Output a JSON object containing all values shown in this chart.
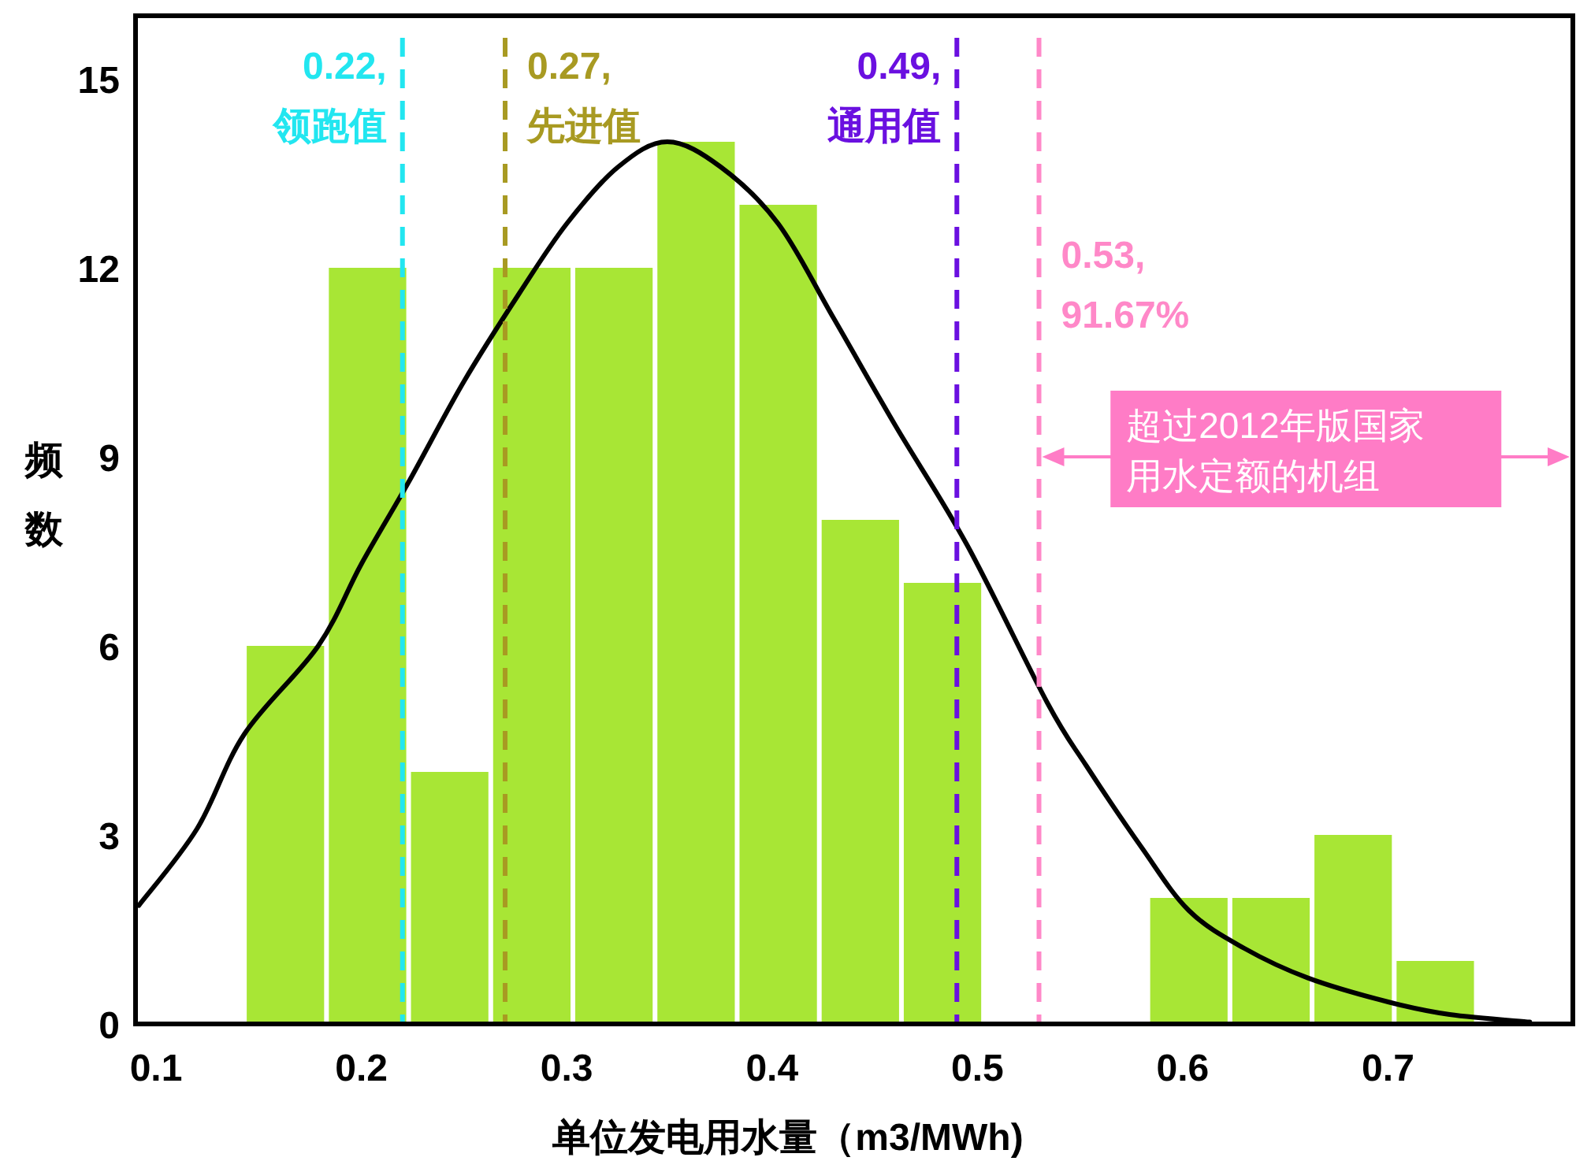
{
  "chart_data": {
    "type": "histogram",
    "xlabel": "单位发电用水量（m3/MWh)",
    "ylabel": "频数",
    "bins": [
      0.143,
      0.183,
      0.223,
      0.263,
      0.303,
      0.343,
      0.383,
      0.423,
      0.463,
      0.503,
      0.543,
      0.583,
      0.623,
      0.663,
      0.703,
      0.743
    ],
    "values": [
      6,
      12,
      4,
      12,
      12,
      14,
      13,
      8,
      7,
      0,
      0,
      2,
      2,
      3,
      1
    ],
    "color": "#a8e635",
    "series": [
      {
        "type": "line",
        "color": "#000000",
        "x": [
          0.0916,
          0.12,
          0.143,
          0.179,
          0.2,
          0.223,
          0.25,
          0.277,
          0.3,
          0.325,
          0.349,
          0.375,
          0.403,
          0.43,
          0.46,
          0.495,
          0.534,
          0.553,
          0.58,
          0.603,
          0.63,
          0.661,
          0.7,
          0.73,
          0.769
        ],
        "values": [
          1.88,
          3.1,
          4.6,
          6.0,
          7.3,
          8.6,
          10.2,
          11.6,
          12.7,
          13.6,
          14.0,
          13.6,
          12.7,
          11.2,
          9.5,
          7.6,
          5.1,
          4.1,
          2.8,
          1.8,
          1.2,
          0.73,
          0.35,
          0.15,
          0.03
        ]
      }
    ],
    "xlim": [
      0.09,
      0.79
    ],
    "ylim": [
      0,
      16
    ],
    "xticks": [
      0.1,
      0.2,
      0.3,
      0.4,
      0.5,
      0.6,
      0.7
    ],
    "yticks": [
      0,
      3,
      6,
      9,
      12,
      15
    ],
    "ref_lines": [
      {
        "axis": "x",
        "value": 0.22,
        "label": "0.22,\n领跑值",
        "color": "#22e6f0",
        "line_style": "dashed"
      },
      {
        "axis": "x",
        "value": 0.27,
        "label": "0.27,\n先进值",
        "color": "#a89a22",
        "line_style": "dashed"
      },
      {
        "axis": "x",
        "value": 0.49,
        "label": "0.49,\n通用值",
        "color": "#6a10e0",
        "line_style": "dashed"
      },
      {
        "axis": "x",
        "value": 0.53,
        "label": "0.53,\n91.67%",
        "color": "#ff88c8",
        "line_style": "dashed"
      }
    ],
    "annotations": [
      {
        "text": "超过2012年版国家用水定额的机组",
        "x": 0.53,
        "y": 9
      }
    ]
  }
}
